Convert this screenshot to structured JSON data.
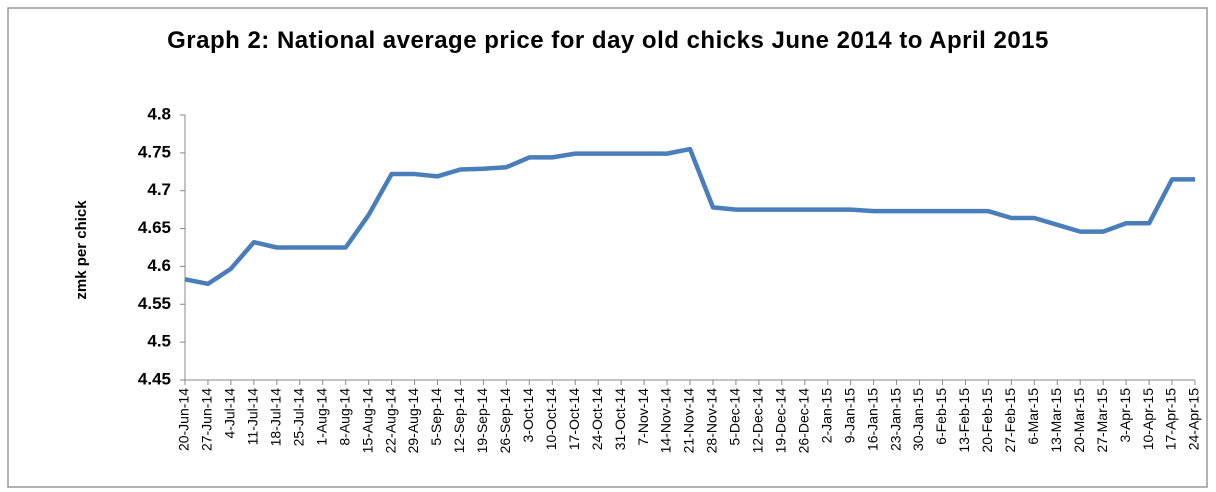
{
  "chart_data": {
    "type": "line",
    "title": "Graph 2: National average price for day old chicks June 2014 to April 2015",
    "y_label": "zmk per chick",
    "categories": [
      "20-Jun-14",
      "27-Jun-14",
      "4-Jul-14",
      "11-Jul-14",
      "18-Jul-14",
      "25-Jul-14",
      "1-Aug-14",
      "8-Aug-14",
      "15-Aug-14",
      "22-Aug-14",
      "29-Aug-14",
      "5-Sep-14",
      "12-Sep-14",
      "19-Sep-14",
      "26-Sep-14",
      "3-Oct-14",
      "10-Oct-14",
      "17-Oct-14",
      "24-Oct-14",
      "31-Oct-14",
      "7-Nov-14",
      "14-Nov-14",
      "21-Nov-14",
      "28-Nov-14",
      "5-Dec-14",
      "12-Dec-14",
      "19-Dec-14",
      "26-Dec-14",
      "2-Jan-15",
      "9-Jan-15",
      "16-Jan-15",
      "23-Jan-15",
      "30-Jan-15",
      "6-Feb-15",
      "13-Feb-15",
      "20-Feb-15",
      "27-Feb-15",
      "6-Mar-15",
      "13-Mar-15",
      "20-Mar-15",
      "27-Mar-15",
      "3-Apr-15",
      "10-Apr-15",
      "17-Apr-15",
      "24-Apr-15"
    ],
    "values": [
      4.583,
      4.577,
      4.597,
      4.632,
      4.625,
      4.625,
      4.625,
      4.625,
      4.668,
      4.722,
      4.722,
      4.719,
      4.728,
      4.729,
      4.731,
      4.744,
      4.744,
      4.749,
      4.749,
      4.749,
      4.749,
      4.749,
      4.755,
      4.678,
      4.675,
      4.675,
      4.675,
      4.675,
      4.675,
      4.675,
      4.673,
      4.673,
      4.673,
      4.673,
      4.673,
      4.673,
      4.664,
      4.664,
      4.655,
      4.646,
      4.646,
      4.657,
      4.657,
      4.715,
      4.715
    ],
    "color": "#4a7ebb",
    "ylim": [
      4.45,
      4.8
    ],
    "yticks": [
      4.45,
      4.5,
      4.55,
      4.6,
      4.65,
      4.7,
      4.75,
      4.8
    ]
  }
}
